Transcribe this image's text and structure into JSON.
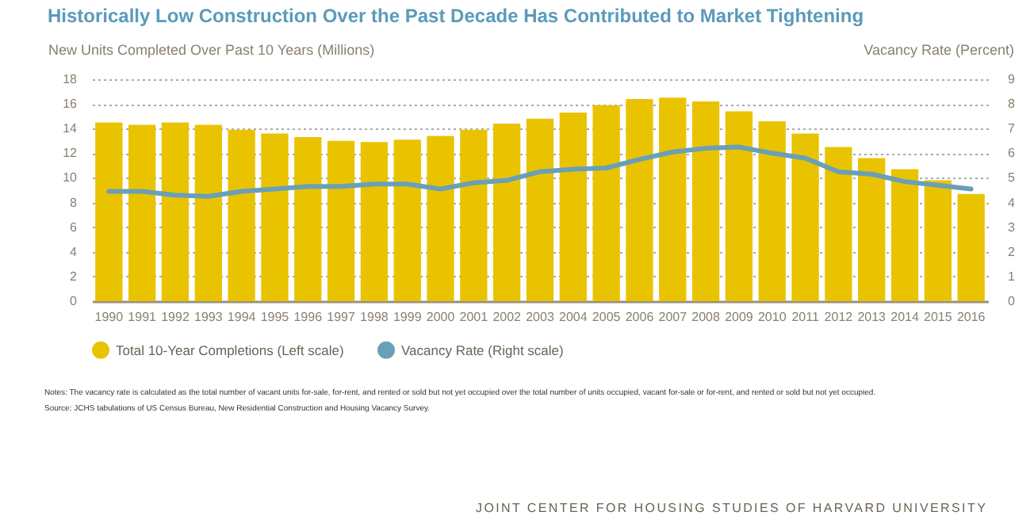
{
  "chart_data": {
    "type": "bar",
    "title": "Historically Low Construction Over the Past Decade Has Contributed to Market Tightening",
    "ylabel": "New Units Completed Over Past 10 Years (Millions)",
    "y2label": "Vacancy Rate (Percent)",
    "categories": [
      "1990",
      "1991",
      "1992",
      "1993",
      "1994",
      "1995",
      "1996",
      "1997",
      "1998",
      "1999",
      "2000",
      "2001",
      "2002",
      "2003",
      "2004",
      "2005",
      "2006",
      "2007",
      "2008",
      "2009",
      "2010",
      "2011",
      "2012",
      "2013",
      "2014",
      "2015",
      "2016"
    ],
    "series": [
      {
        "name": "Total 10-Year Completions (Left scale)",
        "color": "#e9c300",
        "values": [
          14.5,
          14.3,
          14.5,
          14.3,
          13.9,
          13.6,
          13.3,
          13.0,
          12.9,
          13.1,
          13.4,
          13.9,
          14.4,
          14.8,
          15.3,
          15.9,
          16.4,
          16.5,
          16.2,
          15.4,
          14.6,
          13.6,
          12.5,
          11.6,
          10.7,
          9.8,
          8.7
        ]
      },
      {
        "name": "Vacancy Rate (Right scale)",
        "type": "line",
        "axis": "y2",
        "color": "#6a9fb8",
        "values": [
          4.45,
          4.45,
          4.3,
          4.25,
          4.45,
          4.55,
          4.65,
          4.65,
          4.75,
          4.75,
          4.55,
          4.8,
          4.9,
          5.25,
          5.35,
          5.4,
          5.75,
          6.05,
          6.2,
          6.25,
          6.0,
          5.8,
          5.25,
          5.15,
          4.85,
          4.7,
          4.55
        ]
      }
    ],
    "ylim": [
      0,
      18
    ],
    "yticks": [
      0,
      2,
      4,
      6,
      8,
      10,
      12,
      14,
      16,
      18
    ],
    "y2lim": [
      0,
      9
    ],
    "y2ticks": [
      0,
      1,
      2,
      3,
      4,
      5,
      6,
      7,
      8,
      9
    ],
    "grid": "y",
    "legend": "bottom left",
    "annotations": [
      "Notes: The vacancy rate is calculated as the total number of vacant units for-sale, for-rent, and rented or sold but not yet occupied over the total number of units occupied, vacant for-sale or for-rent, and rented or sold but not yet occupied.",
      "Source: JCHS tabulations of US Census Bureau, New Residential Construction and Housing Vacancy Survey.",
      "JOINT CENTER FOR HOUSING STUDIES OF HARVARD UNIVERSITY"
    ]
  }
}
